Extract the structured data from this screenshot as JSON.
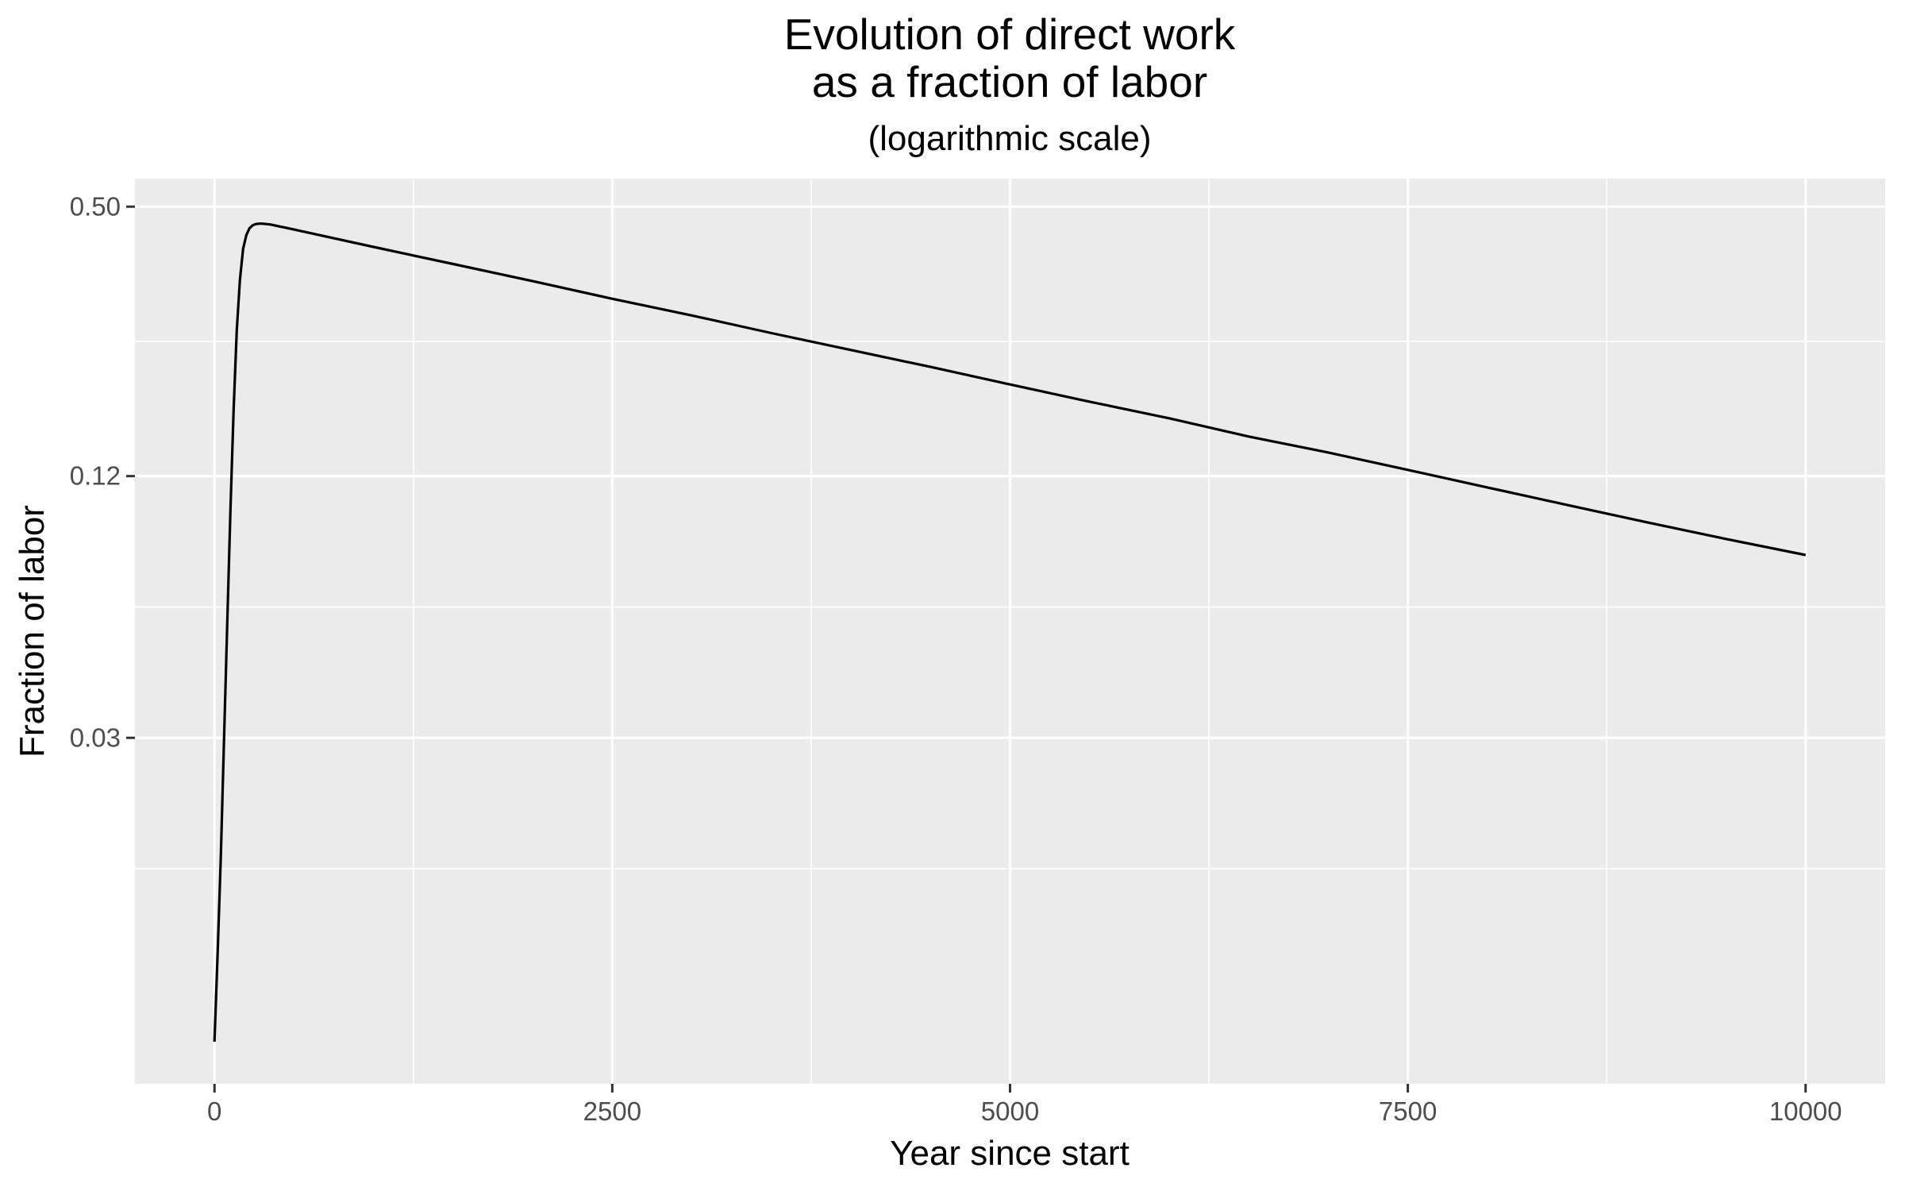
{
  "chart_data": {
    "type": "line",
    "title": [
      "Evolution of direct work",
      "as a fraction of labor"
    ],
    "subtitle": "(logarithmic scale)",
    "xlabel": "Year since start",
    "ylabel": "Fraction of labor",
    "x_scale": "linear",
    "y_scale": "log",
    "xlim": [
      -500,
      10500
    ],
    "ylim": [
      0.0048,
      0.58
    ],
    "x_ticks": [
      {
        "value": 0,
        "label": "0"
      },
      {
        "value": 2500,
        "label": "2500"
      },
      {
        "value": 5000,
        "label": "5000"
      },
      {
        "value": 7500,
        "label": "7500"
      },
      {
        "value": 10000,
        "label": "10000"
      }
    ],
    "x_minor_ticks": [
      1250,
      3750,
      6250,
      8750
    ],
    "y_ticks": [
      {
        "value": 0.03,
        "label": "0.03"
      },
      {
        "value": 0.12,
        "label": "0.12"
      },
      {
        "value": 0.5,
        "label": "0.50"
      }
    ],
    "y_minor_ticks": [
      0.015,
      0.06,
      0.245
    ],
    "grid": true,
    "legend": "none",
    "colors": {
      "panel": "#ebebeb",
      "grid": "#ffffff",
      "line": "#000000",
      "tick_label": "#4d4d4d",
      "tick_mark": "#333333"
    },
    "series": [
      {
        "x": [
          0,
          20,
          40,
          60,
          80,
          100,
          120,
          140,
          160,
          180,
          200,
          220,
          240,
          260,
          280,
          300,
          350,
          400,
          500,
          750,
          1000,
          1250,
          1500,
          2000,
          2500,
          3000,
          3500,
          4000,
          4500,
          5000,
          5500,
          6000,
          6500,
          7000,
          7500,
          8000,
          8500,
          9000,
          9500,
          10000
        ],
        "y": [
          0.006,
          0.0096,
          0.016,
          0.03,
          0.055,
          0.1,
          0.17,
          0.26,
          0.34,
          0.4,
          0.43,
          0.446,
          0.453,
          0.456,
          0.457,
          0.457,
          0.455,
          0.451,
          0.443,
          0.423,
          0.404,
          0.386,
          0.369,
          0.337,
          0.307,
          0.281,
          0.256,
          0.234,
          0.214,
          0.195,
          0.178,
          0.163,
          0.148,
          0.136,
          0.124,
          0.113,
          0.103,
          0.094,
          0.086,
          0.079
        ]
      }
    ]
  }
}
